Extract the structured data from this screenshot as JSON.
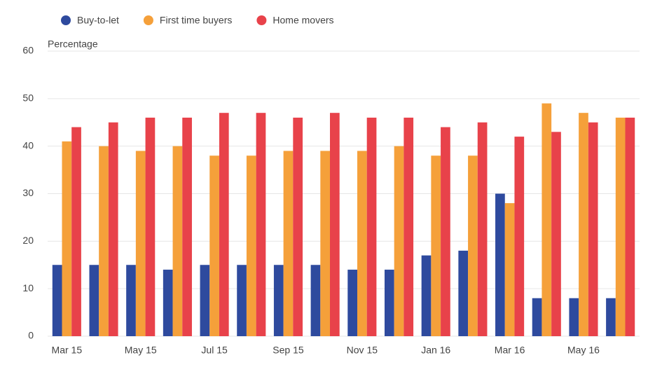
{
  "chart_data": {
    "type": "bar",
    "y_label": "Percentage",
    "categories": [
      "Mar 15",
      null,
      "May 15",
      null,
      "Jul 15",
      null,
      "Sep 15",
      null,
      "Nov 15",
      null,
      "Jan 16",
      null,
      "Mar 16",
      null,
      "May 16",
      null
    ],
    "series": [
      {
        "name": "Buy-to-let",
        "color": "#2e4a9e",
        "values": [
          15,
          15,
          15,
          14,
          15,
          15,
          15,
          15,
          14,
          14,
          17,
          18,
          30,
          8,
          8,
          8
        ]
      },
      {
        "name": "First time buyers",
        "color": "#f5a03a",
        "values": [
          41,
          40,
          39,
          40,
          38,
          38,
          39,
          39,
          39,
          40,
          38,
          38,
          28,
          49,
          47,
          46
        ]
      },
      {
        "name": "Home movers",
        "color": "#e8424a",
        "values": [
          44,
          45,
          46,
          46,
          47,
          47,
          46,
          47,
          46,
          46,
          44,
          45,
          42,
          43,
          45,
          46
        ]
      }
    ],
    "ylim": [
      0,
      60
    ],
    "yticks": [
      0,
      10,
      20,
      30,
      40,
      50,
      60
    ],
    "grid": true
  }
}
